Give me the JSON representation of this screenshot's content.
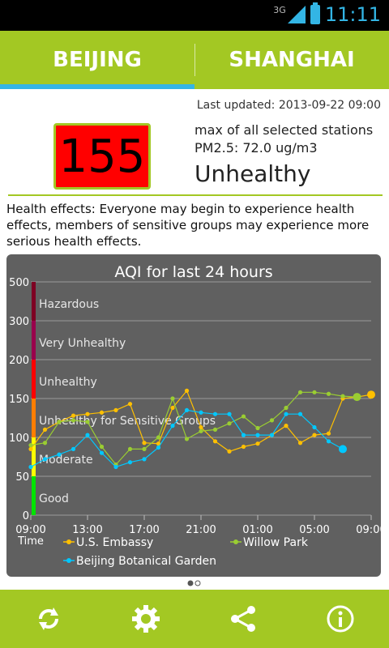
{
  "status": {
    "network": "3G",
    "time": "11:11"
  },
  "tabs": [
    {
      "label": "BEIJING"
    },
    {
      "label": "SHANGHAI"
    }
  ],
  "header": {
    "last_updated": "Last updated: 2013-09-22 09:00",
    "aqi": "155",
    "subtitle": "max of all selected stations",
    "pm": "PM2.5: 72.0 ug/m3",
    "level": "Unhealthy"
  },
  "health_effects": "Health effects: Everyone may begin to experience health effects, members of sensitive groups may experience more serious health effects.",
  "colors": {
    "accent": "#a3c823",
    "tab_indicator": "#33b5e5",
    "aqi_bg": "#ff0000"
  },
  "chart_data": {
    "type": "line",
    "title": "AQI for last 24 hours",
    "xlabel": "Time",
    "ylabel": "",
    "ylim": [
      0,
      500
    ],
    "y_ticks": [
      "0",
      "50",
      "100",
      "150",
      "200",
      "300",
      "500"
    ],
    "x_ticks": [
      "09:00",
      "13:00",
      "17:00",
      "21:00",
      "01:00",
      "05:00",
      "09:00"
    ],
    "bands": [
      {
        "label": "Good",
        "from": 0,
        "to": 50,
        "color": "#00e400"
      },
      {
        "label": "Moderate",
        "from": 50,
        "to": 100,
        "color": "#ffff00"
      },
      {
        "label": "Unhealthy for Sensitive Groups",
        "from": 100,
        "to": 150,
        "color": "#ff7e00"
      },
      {
        "label": "Unhealthy",
        "from": 150,
        "to": 200,
        "color": "#ff0000"
      },
      {
        "label": "Very Unhealthy",
        "from": 200,
        "to": 300,
        "color": "#99004c"
      },
      {
        "label": "Hazardous",
        "from": 300,
        "to": 500,
        "color": "#7e0023"
      }
    ],
    "x": [
      0,
      1,
      2,
      3,
      4,
      5,
      6,
      7,
      8,
      9,
      10,
      11,
      12,
      13,
      14,
      15,
      16,
      17,
      18,
      19,
      20,
      21,
      22,
      23,
      24
    ],
    "series": [
      {
        "name": "U.S. Embassy",
        "color": "#ffc000",
        "values": [
          85,
          110,
          120,
          128,
          130,
          132,
          135,
          143,
          93,
          92,
          138,
          160,
          113,
          95,
          82,
          88,
          92,
          103,
          115,
          93,
          103,
          105,
          150,
          152,
          155
        ]
      },
      {
        "name": "Willow Park",
        "color": "#9acd32",
        "values": [
          90,
          93,
          120,
          122,
          120,
          88,
          65,
          85,
          85,
          100,
          150,
          98,
          108,
          110,
          118,
          127,
          112,
          122,
          138,
          158,
          158,
          156,
          153,
          152,
          null
        ]
      },
      {
        "name": "Beijing Botanical Garden",
        "color": "#00c8ff",
        "values": [
          62,
          72,
          78,
          85,
          103,
          80,
          62,
          68,
          72,
          87,
          115,
          135,
          132,
          130,
          130,
          103,
          103,
          103,
          130,
          130,
          113,
          95,
          85,
          null,
          null
        ]
      }
    ]
  },
  "pager": {
    "count": 2,
    "active": 0
  },
  "bottom_bar": [
    {
      "name": "refresh-icon"
    },
    {
      "name": "settings-icon"
    },
    {
      "name": "share-icon"
    },
    {
      "name": "info-icon"
    }
  ]
}
